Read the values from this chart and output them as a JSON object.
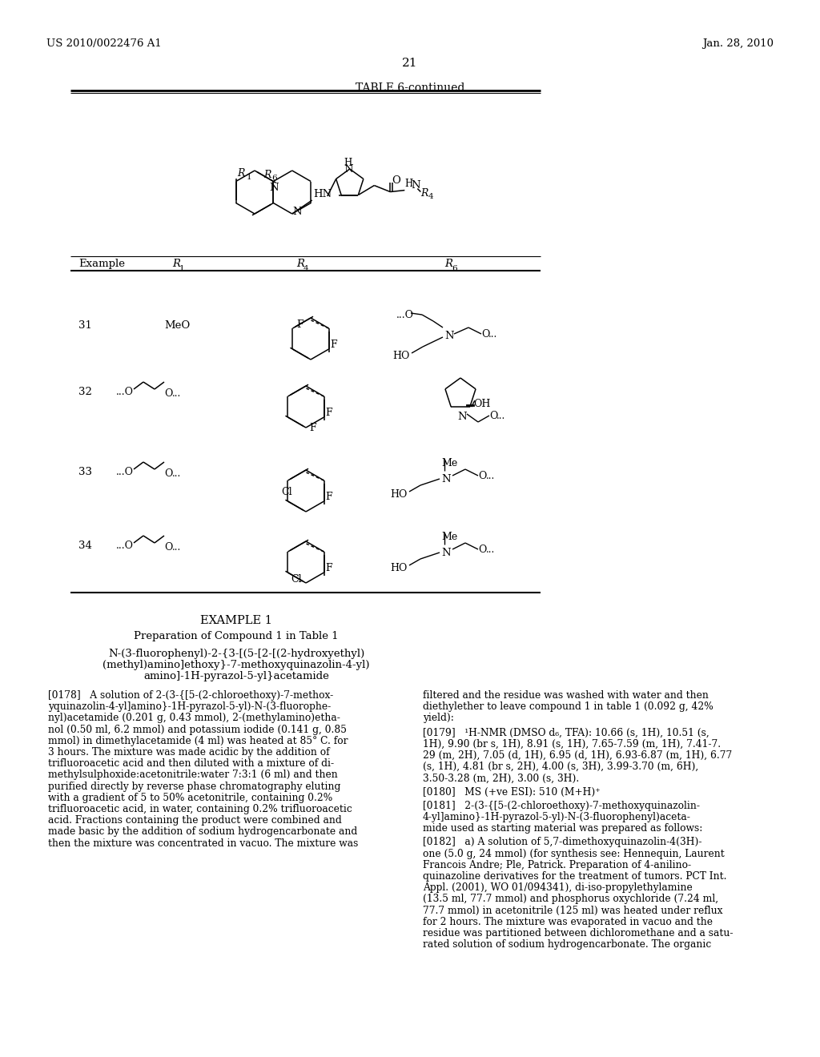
{
  "bg_color": "#ffffff",
  "header_left": "US 2010/0022476 A1",
  "header_right": "Jan. 28, 2010",
  "page_number": "21",
  "table_title": "TABLE 6-continued",
  "example1_title": "EXAMPLE 1",
  "example1_subtitle": "Preparation of Compound 1 in Table 1",
  "compound_line1": "N-(3-fluorophenyl)-2-{3-[(5-[2-[(2-hydroxyethyl)",
  "compound_line2": "(methyl)amino]ethoxy}-7-methoxyquinazolin-4-yl)",
  "compound_line3": "amino]-1H-pyrazol-5-yl}acetamide",
  "para178_left": [
    "[0178]   A solution of 2-(3-{[5-(2-chloroethoxy)-7-methox-",
    "yquinazolin-4-yl]amino}-1H-pyrazol-5-yl)-N-(3-fluorophe-",
    "nyl)acetamide (0.201 g, 0.43 mmol), 2-(methylamino)etha-",
    "nol (0.50 ml, 6.2 mmol) and potassium iodide (0.141 g, 0.85",
    "mmol) in dimethylacetamide (4 ml) was heated at 85° C. for",
    "3 hours. The mixture was made acidic by the addition of",
    "trifluoroacetic acid and then diluted with a mixture of di-",
    "methylsulphoxide:acetonitrile:water 7:3:1 (6 ml) and then",
    "purified directly by reverse phase chromatography eluting",
    "with a gradient of 5 to 50% acetonitrile, containing 0.2%",
    "trifluoroacetic acid, in water, containing 0.2% trifluoroacetic",
    "acid. Fractions containing the product were combined and",
    "made basic by the addition of sodium hydrogencarbonate and",
    "then the mixture was concentrated in vacuo. The mixture was"
  ],
  "para178_right": [
    "filtered and the residue was washed with water and then",
    "diethylether to leave compound 1 in table 1 (0.092 g, 42%",
    "yield):"
  ],
  "para179_first": "[0179]   ¹H-NMR (DMSO d₆, TFA): 10.66 (s, 1H), 10.51 (s,",
  "para179_rest": [
    "1H), 9.90 (br s, 1H), 8.91 (s, 1H), 7.65-7.59 (m, 1H), 7.41-7.",
    "29 (m, 2H), 7.05 (d, 1H), 6.95 (d, 1H), 6.93-6.87 (m, 1H), 6.77",
    "(s, 1H), 4.81 (br s, 2H), 4.00 (s, 3H), 3.99-3.70 (m, 6H),",
    "3.50-3.28 (m, 2H), 3.00 (s, 3H)."
  ],
  "para180": "[0180]   MS (+ve ESI): 510 (M+H)⁺",
  "para181": [
    "[0181]   2-(3-{[5-(2-chloroethoxy)-7-methoxyquinazolin-",
    "4-yl]amino}-1H-pyrazol-5-yl)-N-(3-fluorophenyl)aceta-",
    "mide used as starting material was prepared as follows:"
  ],
  "para182": [
    "[0182]   a) A solution of 5,7-dimethoxyquinazolin-4(3H)-",
    "one (5.0 g, 24 mmol) (for synthesis see: Hennequin, Laurent",
    "Francois Andre; Ple, Patrick. Preparation of 4-anilino-",
    "quinazoline derivatives for the treatment of tumors. PCT Int.",
    "Appl. (2001), WO 01/094341), di-iso-propylethylamine",
    "(13.5 ml, 77.7 mmol) and phosphorus oxychloride (7.24 ml,",
    "77.7 mmol) in acetonitrile (125 ml) was heated under reflux",
    "for 2 hours. The mixture was evaporated in vacuo and the",
    "residue was partitioned between dichloromethane and a satu-",
    "rated solution of sodium hydrogencarbonate. The organic"
  ]
}
